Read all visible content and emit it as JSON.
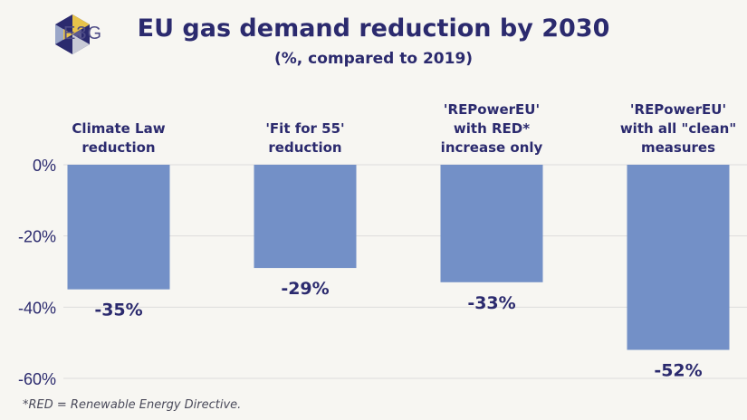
{
  "logo": {
    "text": "E3G"
  },
  "chart_data": {
    "type": "bar",
    "title": "EU gas demand reduction by 2030",
    "subtitle": "(%, compared to 2019)",
    "categories": [
      [
        "Climate Law",
        "reduction"
      ],
      [
        "'Fit for 55'",
        "reduction"
      ],
      [
        "'REPowerEU'",
        "with RED*",
        "increase only"
      ],
      [
        "'REPowerEU'",
        "with all \"clean\"",
        "measures"
      ]
    ],
    "values": [
      -35,
      -29,
      -33,
      -52
    ],
    "data_labels": [
      "-35%",
      "-29%",
      "-33%",
      "-52%"
    ],
    "ylim": [
      -60,
      0
    ],
    "yticks": [
      0,
      -20,
      -40,
      -60
    ],
    "ytick_labels": [
      "0%",
      "-20%",
      "-40%",
      "-60%"
    ],
    "grid": true,
    "bar_color": "#7390c7",
    "grid_color": "#dcdcdc",
    "footnote": "*RED = Renewable Energy Directive."
  }
}
